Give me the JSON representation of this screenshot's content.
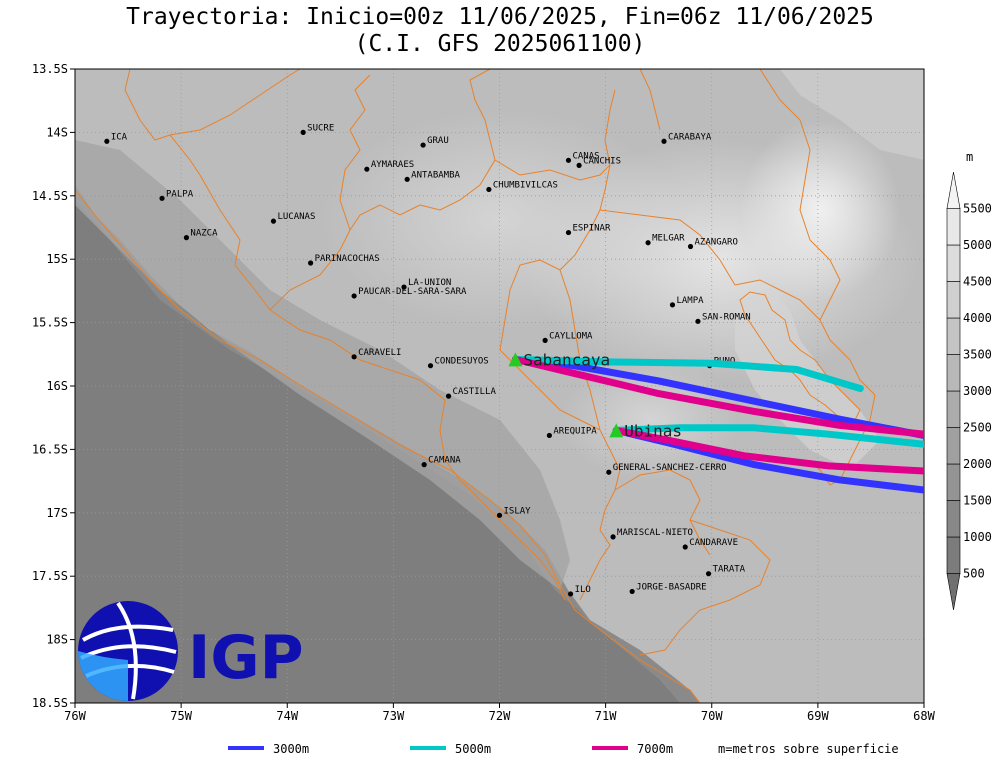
{
  "title": {
    "line1": "Trayectoria: Inicio=00z 11/06/2025, Fin=06z 11/06/2025",
    "line2": "(C.I. GFS 2025061100)"
  },
  "map": {
    "lon_range": [
      -76,
      -68
    ],
    "lat_range": [
      -18.5,
      -13.5
    ],
    "lon_ticks": [
      {
        "lon": -76,
        "label": "76W"
      },
      {
        "lon": -75,
        "label": "75W"
      },
      {
        "lon": -74,
        "label": "74W"
      },
      {
        "lon": -73,
        "label": "73W"
      },
      {
        "lon": -72,
        "label": "72W"
      },
      {
        "lon": -71,
        "label": "71W"
      },
      {
        "lon": -70,
        "label": "70W"
      },
      {
        "lon": -69,
        "label": "69W"
      },
      {
        "lon": -68,
        "label": "68W"
      }
    ],
    "lat_ticks": [
      {
        "lat": -13.5,
        "label": "13.5S"
      },
      {
        "lat": -14,
        "label": "14S"
      },
      {
        "lat": -14.5,
        "label": "14.5S"
      },
      {
        "lat": -15,
        "label": "15S"
      },
      {
        "lat": -15.5,
        "label": "15.5S"
      },
      {
        "lat": -16,
        "label": "16S"
      },
      {
        "lat": -16.5,
        "label": "16.5S"
      },
      {
        "lat": -17,
        "label": "17S"
      },
      {
        "lat": -17.5,
        "label": "17.5S"
      },
      {
        "lat": -18,
        "label": "18S"
      },
      {
        "lat": -18.5,
        "label": "18.5S"
      }
    ]
  },
  "places": [
    {
      "name": "ICA",
      "lon": -75.7,
      "lat": -14.07
    },
    {
      "name": "SUCRE",
      "lon": -73.85,
      "lat": -14.0
    },
    {
      "name": "GRAU",
      "lon": -72.72,
      "lat": -14.1
    },
    {
      "name": "CANAS",
      "lon": -71.35,
      "lat": -14.22
    },
    {
      "name": "CANCHIS",
      "lon": -71.25,
      "lat": -14.26
    },
    {
      "name": "CARABAYA",
      "lon": -70.45,
      "lat": -14.07
    },
    {
      "name": "AYMARAES",
      "lon": -73.25,
      "lat": -14.29
    },
    {
      "name": "ANTABAMBA",
      "lon": -72.87,
      "lat": -14.37
    },
    {
      "name": "CHUMBIVILCAS",
      "lon": -72.1,
      "lat": -14.45
    },
    {
      "name": "PALPA",
      "lon": -75.18,
      "lat": -14.52
    },
    {
      "name": "LUCANAS",
      "lon": -74.13,
      "lat": -14.7
    },
    {
      "name": "NAZCA",
      "lon": -74.95,
      "lat": -14.83
    },
    {
      "name": "ESPINAR",
      "lon": -71.35,
      "lat": -14.79
    },
    {
      "name": "MELGAR",
      "lon": -70.6,
      "lat": -14.87
    },
    {
      "name": "AZANGARO",
      "lon": -70.2,
      "lat": -14.9
    },
    {
      "name": "PARINACOCHAS",
      "lon": -73.78,
      "lat": -15.03
    },
    {
      "name": "LA-UNION",
      "lon": -72.9,
      "lat": -15.22
    },
    {
      "name": "PAUCAR-DEL-SARA-SARA",
      "lon": -73.37,
      "lat": -15.29
    },
    {
      "name": "LAMPA",
      "lon": -70.37,
      "lat": -15.36
    },
    {
      "name": "SAN-ROMAN",
      "lon": -70.13,
      "lat": -15.49
    },
    {
      "name": "CAYLLOMA",
      "lon": -71.57,
      "lat": -15.64
    },
    {
      "name": "CARAVELI",
      "lon": -73.37,
      "lat": -15.77
    },
    {
      "name": "CONDESUYOS",
      "lon": -72.65,
      "lat": -15.84
    },
    {
      "name": "PUNO",
      "lon": -70.02,
      "lat": -15.84
    },
    {
      "name": "CASTILLA",
      "lon": -72.48,
      "lat": -16.08
    },
    {
      "name": "AREQUIPA",
      "lon": -71.53,
      "lat": -16.39
    },
    {
      "name": "CAMANA",
      "lon": -72.71,
      "lat": -16.62
    },
    {
      "name": "GENERAL-SANCHEZ-CERRO",
      "lon": -70.97,
      "lat": -16.68
    },
    {
      "name": "ISLAY",
      "lon": -72.0,
      "lat": -17.02
    },
    {
      "name": "MARISCAL-NIETO",
      "lon": -70.93,
      "lat": -17.19
    },
    {
      "name": "CANDARAVE",
      "lon": -70.25,
      "lat": -17.27
    },
    {
      "name": "TARATA",
      "lon": -70.03,
      "lat": -17.48
    },
    {
      "name": "JORGE-BASADRE",
      "lon": -70.75,
      "lat": -17.62
    },
    {
      "name": "ILO",
      "lon": -71.33,
      "lat": -17.64
    }
  ],
  "volcanoes": [
    {
      "name": "Sabancaya",
      "lon": -71.85,
      "lat": -15.79
    },
    {
      "name": "Ubinas",
      "lon": -70.9,
      "lat": -16.35
    }
  ],
  "trajectories": [
    {
      "source": "Sabancaya",
      "level": "3000m",
      "color": "#3333ff",
      "points": [
        [
          -71.85,
          -15.79
        ],
        [
          -71.3,
          -15.84
        ],
        [
          -70.5,
          -15.96
        ],
        [
          -69.6,
          -16.12
        ],
        [
          -68.8,
          -16.26
        ],
        [
          -68.0,
          -16.39
        ]
      ]
    },
    {
      "source": "Sabancaya",
      "level": "5000m",
      "color": "#00c8c8",
      "points": [
        [
          -71.85,
          -15.79
        ],
        [
          -71.0,
          -15.81
        ],
        [
          -70.0,
          -15.82
        ],
        [
          -69.2,
          -15.87
        ],
        [
          -68.6,
          -16.02
        ]
      ]
    },
    {
      "source": "Sabancaya",
      "level": "7000m",
      "color": "#e0008c",
      "points": [
        [
          -71.85,
          -15.79
        ],
        [
          -71.3,
          -15.9
        ],
        [
          -70.5,
          -16.06
        ],
        [
          -69.6,
          -16.2
        ],
        [
          -68.8,
          -16.31
        ],
        [
          -68.0,
          -16.38
        ]
      ]
    },
    {
      "source": "Ubinas",
      "level": "3000m",
      "color": "#3333ff",
      "points": [
        [
          -70.9,
          -16.35
        ],
        [
          -70.4,
          -16.45
        ],
        [
          -69.6,
          -16.62
        ],
        [
          -68.8,
          -16.74
        ],
        [
          -68.0,
          -16.82
        ]
      ]
    },
    {
      "source": "Ubinas",
      "level": "5000m",
      "color": "#00c8c8",
      "points": [
        [
          -70.9,
          -16.35
        ],
        [
          -70.3,
          -16.33
        ],
        [
          -69.6,
          -16.33
        ],
        [
          -68.9,
          -16.38
        ],
        [
          -68.0,
          -16.46
        ]
      ]
    },
    {
      "source": "Ubinas",
      "level": "7000m",
      "color": "#e0008c",
      "points": [
        [
          -70.9,
          -16.35
        ],
        [
          -70.4,
          -16.43
        ],
        [
          -69.7,
          -16.55
        ],
        [
          -68.9,
          -16.63
        ],
        [
          -68.0,
          -16.67
        ]
      ]
    }
  ],
  "colorbar": {
    "unit": "m",
    "ticks": [
      "500",
      "1000",
      "1500",
      "2000",
      "2500",
      "3000",
      "3500",
      "4000",
      "4500",
      "5000",
      "5500"
    ],
    "colors": [
      "#707070",
      "#7c7c7c",
      "#888888",
      "#949494",
      "#a0a0a0",
      "#acacac",
      "#b8b8b8",
      "#c4c4c4",
      "#d0d0d0",
      "#dcdcdc",
      "#e8e8e8",
      "#f4f4f4"
    ]
  },
  "legend": {
    "items": [
      {
        "label": "3000m",
        "color": "#3333ff"
      },
      {
        "label": "5000m",
        "color": "#00c8c8"
      },
      {
        "label": "7000m",
        "color": "#e0008c"
      }
    ],
    "note": "m=metros sobre superficie"
  },
  "logo": {
    "text": "IGP",
    "color": "#1010b0",
    "accent": "#33aaff"
  }
}
